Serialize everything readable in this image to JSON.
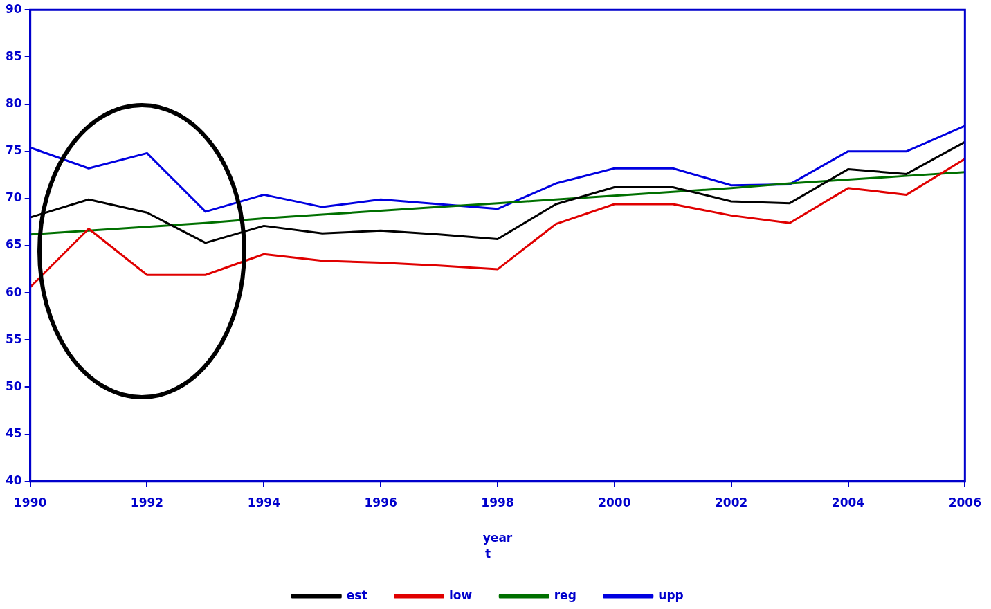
{
  "chart_data": {
    "type": "line",
    "xlabel": "year",
    "legend_title": "t",
    "x": [
      1990,
      1991,
      1992,
      1993,
      1994,
      1995,
      1996,
      1997,
      1998,
      1999,
      2000,
      2001,
      2002,
      2003,
      2004,
      2005,
      2006
    ],
    "series": [
      {
        "name": "est",
        "color": "#000000",
        "values": [
          68.0,
          69.9,
          68.5,
          65.3,
          67.1,
          66.3,
          66.6,
          66.2,
          65.7,
          69.4,
          71.2,
          71.2,
          69.7,
          69.5,
          73.1,
          72.6,
          76.0
        ]
      },
      {
        "name": "low",
        "color": "#e00000",
        "values": [
          60.6,
          66.8,
          61.9,
          61.9,
          64.1,
          63.4,
          63.2,
          62.9,
          62.5,
          67.3,
          69.4,
          69.4,
          68.2,
          67.4,
          71.1,
          70.4,
          74.2
        ]
      },
      {
        "name": "reg",
        "color": "#007000",
        "values": [
          66.2,
          66.6,
          67.0,
          67.4,
          67.9,
          68.3,
          68.7,
          69.1,
          69.5,
          69.9,
          70.3,
          70.7,
          71.1,
          71.6,
          72.0,
          72.4,
          72.8
        ]
      },
      {
        "name": "upp",
        "color": "#0000e0",
        "values": [
          75.4,
          73.2,
          74.8,
          68.6,
          70.4,
          69.1,
          69.9,
          69.4,
          68.9,
          71.6,
          73.2,
          73.2,
          71.4,
          71.5,
          75.0,
          75.0,
          77.7
        ]
      }
    ],
    "xlim": [
      1990,
      2006
    ],
    "xticks": [
      1990,
      1992,
      1994,
      1996,
      1998,
      2000,
      2002,
      2004,
      2006
    ],
    "ylim": [
      40,
      90
    ],
    "yticks": [
      40,
      45,
      50,
      55,
      60,
      65,
      70,
      75,
      80,
      85,
      90
    ],
    "grid": false,
    "legend": "bottom",
    "marker": "none",
    "line_style": "solid"
  }
}
